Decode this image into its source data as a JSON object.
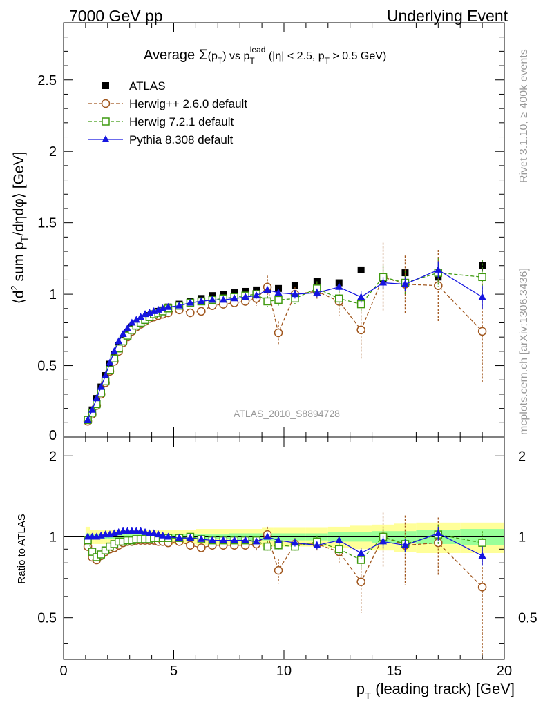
{
  "header": {
    "left": "7000 GeV pp",
    "right": "Underlying Event"
  },
  "side_text": {
    "rivet": "Rivet 3.1.10, ≥ 400k events",
    "mcplots": "mcplots.cern.ch [arXiv:1306.3436]"
  },
  "watermark": "ATLAS_2010_S8894728",
  "colors": {
    "atlas": "#000000",
    "herwigpp": "#a0561d",
    "herwig7": "#3f9a10",
    "pythia": "#1515e0",
    "band_yellow": "#ffff99",
    "band_green": "#99ff99"
  },
  "chart_data": [
    {
      "type": "scatter",
      "panel": "main",
      "title": "Average Σ(p_T) vs p_T^lead (|η| < 2.5, p_T > 0.5 GeV)",
      "ylabel": "⟨d² sum p_T/dηdφ⟩ [GeV]",
      "xlabel": "",
      "xlim": [
        0,
        20
      ],
      "ylim": [
        0,
        2.9
      ],
      "xticks": [
        0,
        5,
        10,
        15,
        20
      ],
      "yticks": [
        0.5,
        1,
        1.5,
        2,
        2.5
      ],
      "ytick_labels": [
        "0.5",
        "1",
        "1.5",
        "2",
        "2.5"
      ],
      "y0_label": "0",
      "legend_position": "top-left",
      "x": [
        1.1,
        1.3,
        1.5,
        1.7,
        1.9,
        2.1,
        2.3,
        2.5,
        2.7,
        2.9,
        3.1,
        3.3,
        3.5,
        3.7,
        3.9,
        4.1,
        4.3,
        4.5,
        4.75,
        5.25,
        5.75,
        6.25,
        6.75,
        7.25,
        7.75,
        8.25,
        8.75,
        9.25,
        9.75,
        10.5,
        11.5,
        12.5,
        13.5,
        14.5,
        15.5,
        17,
        19
      ],
      "series": [
        {
          "name": "ATLAS",
          "marker": "filled-square",
          "values": [
            0.12,
            0.19,
            0.27,
            0.35,
            0.43,
            0.51,
            0.58,
            0.64,
            0.69,
            0.73,
            0.77,
            0.79,
            0.81,
            0.83,
            0.85,
            0.86,
            0.88,
            0.89,
            0.91,
            0.93,
            0.95,
            0.97,
            0.99,
            1.0,
            1.01,
            1.02,
            1.03,
            1.03,
            1.04,
            1.06,
            1.09,
            1.08,
            1.17,
            1.11,
            1.15,
            1.12,
            1.2
          ],
          "errors": [
            0.01,
            0.01,
            0.01,
            0.01,
            0.01,
            0.01,
            0.01,
            0.01,
            0.01,
            0.01,
            0.01,
            0.01,
            0.01,
            0.01,
            0.01,
            0.01,
            0.01,
            0.01,
            0.01,
            0.01,
            0.01,
            0.01,
            0.01,
            0.01,
            0.01,
            0.01,
            0.02,
            0.02,
            0.02,
            0.02,
            0.02,
            0.02,
            0.02,
            0.02,
            0.03,
            0.03,
            0.04
          ]
        },
        {
          "name": "Herwig++ 2.6.0 default",
          "marker": "open-circle",
          "line": "dashed",
          "values": [
            0.11,
            0.16,
            0.22,
            0.3,
            0.38,
            0.46,
            0.53,
            0.6,
            0.66,
            0.7,
            0.74,
            0.77,
            0.79,
            0.81,
            0.83,
            0.84,
            0.85,
            0.86,
            0.87,
            0.89,
            0.87,
            0.88,
            0.92,
            0.93,
            0.94,
            0.95,
            0.97,
            1.05,
            0.73,
            1.0,
            1.02,
            0.95,
            0.75,
            1.12,
            1.07,
            1.06,
            0.74
          ],
          "errors": [
            0.005,
            0.005,
            0.005,
            0.005,
            0.005,
            0.005,
            0.005,
            0.005,
            0.005,
            0.005,
            0.005,
            0.005,
            0.005,
            0.005,
            0.005,
            0.005,
            0.005,
            0.005,
            0.005,
            0.01,
            0.01,
            0.01,
            0.02,
            0.02,
            0.03,
            0.03,
            0.05,
            0.08,
            0.08,
            0.05,
            0.06,
            0.1,
            0.2,
            0.24,
            0.2,
            0.25,
            0.36
          ]
        },
        {
          "name": "Herwig 7.2.1 default",
          "marker": "open-square",
          "line": "dashed",
          "values": [
            0.12,
            0.17,
            0.23,
            0.31,
            0.39,
            0.47,
            0.55,
            0.62,
            0.67,
            0.71,
            0.75,
            0.78,
            0.8,
            0.82,
            0.84,
            0.86,
            0.87,
            0.88,
            0.9,
            0.92,
            0.94,
            0.95,
            0.96,
            0.97,
            0.98,
            0.99,
            1.0,
            0.95,
            0.96,
            0.97,
            1.04,
            0.97,
            0.93,
            1.12,
            1.08,
            1.15,
            1.12
          ],
          "errors": [
            0.005,
            0.005,
            0.005,
            0.005,
            0.005,
            0.005,
            0.005,
            0.005,
            0.005,
            0.005,
            0.005,
            0.005,
            0.005,
            0.005,
            0.005,
            0.005,
            0.005,
            0.005,
            0.005,
            0.01,
            0.01,
            0.01,
            0.01,
            0.02,
            0.02,
            0.02,
            0.03,
            0.04,
            0.04,
            0.04,
            0.05,
            0.05,
            0.06,
            0.08,
            0.08,
            0.1,
            0.12
          ]
        },
        {
          "name": "Pythia 8.308 default",
          "marker": "filled-triangle",
          "line": "solid",
          "values": [
            0.12,
            0.19,
            0.27,
            0.35,
            0.43,
            0.52,
            0.6,
            0.67,
            0.72,
            0.76,
            0.8,
            0.82,
            0.84,
            0.86,
            0.87,
            0.88,
            0.89,
            0.9,
            0.91,
            0.92,
            0.94,
            0.95,
            0.96,
            0.96,
            0.97,
            0.98,
            0.99,
            1.03,
            1.01,
            1.0,
            1.01,
            1.05,
            0.98,
            1.08,
            1.07,
            1.17,
            0.98
          ],
          "errors": [
            0.005,
            0.005,
            0.005,
            0.005,
            0.005,
            0.005,
            0.005,
            0.005,
            0.005,
            0.005,
            0.005,
            0.005,
            0.005,
            0.005,
            0.005,
            0.005,
            0.005,
            0.005,
            0.005,
            0.01,
            0.01,
            0.01,
            0.01,
            0.01,
            0.01,
            0.02,
            0.02,
            0.02,
            0.02,
            0.03,
            0.03,
            0.03,
            0.04,
            0.04,
            0.05,
            0.06,
            0.08
          ]
        }
      ]
    },
    {
      "type": "scatter",
      "panel": "ratio",
      "ylabel": "Ratio to ATLAS",
      "xlabel": "p_T (leading track) [GeV]",
      "xlim": [
        0,
        20
      ],
      "ylim": [
        0.35,
        2.35
      ],
      "xticks": [
        0,
        5,
        10,
        15,
        20
      ],
      "yticks": [
        0.5,
        1,
        2
      ],
      "ytick_labels": [
        "0.5",
        "1",
        "2"
      ],
      "reference_line": 1,
      "x": [
        1.1,
        1.3,
        1.5,
        1.7,
        1.9,
        2.1,
        2.3,
        2.5,
        2.7,
        2.9,
        3.1,
        3.3,
        3.5,
        3.7,
        3.9,
        4.1,
        4.3,
        4.5,
        4.75,
        5.25,
        5.75,
        6.25,
        6.75,
        7.25,
        7.75,
        8.25,
        8.75,
        9.25,
        9.75,
        10.5,
        11.5,
        12.5,
        13.5,
        14.5,
        15.5,
        17,
        19
      ],
      "bands": {
        "edges": [
          1,
          1.2,
          1.4,
          1.6,
          1.8,
          2.0,
          2.2,
          2.4,
          2.6,
          2.8,
          3.0,
          3.2,
          3.4,
          3.6,
          3.8,
          4.0,
          4.2,
          4.4,
          4.6,
          5.0,
          5.5,
          6.0,
          6.5,
          7.0,
          7.5,
          8.0,
          8.5,
          9.0,
          9.5,
          10.0,
          11.0,
          12.0,
          13.0,
          14.0,
          15.0,
          16.0,
          18.0,
          20.0
        ],
        "yellow_halfwidth": [
          0.09,
          0.06,
          0.06,
          0.06,
          0.06,
          0.06,
          0.06,
          0.06,
          0.06,
          0.06,
          0.06,
          0.06,
          0.06,
          0.06,
          0.06,
          0.06,
          0.06,
          0.06,
          0.06,
          0.06,
          0.06,
          0.07,
          0.07,
          0.07,
          0.07,
          0.07,
          0.07,
          0.08,
          0.08,
          0.08,
          0.08,
          0.09,
          0.1,
          0.11,
          0.12,
          0.13,
          0.13
        ],
        "green_halfwidth": [
          0.03,
          0.02,
          0.02,
          0.02,
          0.02,
          0.02,
          0.02,
          0.02,
          0.02,
          0.02,
          0.02,
          0.02,
          0.02,
          0.02,
          0.02,
          0.02,
          0.02,
          0.02,
          0.02,
          0.02,
          0.02,
          0.02,
          0.02,
          0.02,
          0.03,
          0.03,
          0.03,
          0.03,
          0.03,
          0.03,
          0.03,
          0.04,
          0.04,
          0.05,
          0.05,
          0.06,
          0.07
        ]
      },
      "series": [
        {
          "name": "Herwig++ 2.6.0 default",
          "values": [
            0.92,
            0.84,
            0.82,
            0.85,
            0.88,
            0.9,
            0.91,
            0.93,
            0.95,
            0.96,
            0.96,
            0.97,
            0.97,
            0.97,
            0.97,
            0.97,
            0.96,
            0.96,
            0.95,
            0.96,
            0.93,
            0.91,
            0.93,
            0.93,
            0.93,
            0.93,
            0.94,
            1.02,
            0.75,
            0.94,
            0.94,
            0.88,
            0.68,
            1.0,
            0.93,
            0.95,
            0.65
          ],
          "errors": [
            0.005,
            0.005,
            0.005,
            0.005,
            0.005,
            0.005,
            0.005,
            0.005,
            0.005,
            0.005,
            0.005,
            0.005,
            0.005,
            0.005,
            0.005,
            0.005,
            0.005,
            0.005,
            0.005,
            0.01,
            0.01,
            0.01,
            0.02,
            0.02,
            0.03,
            0.03,
            0.05,
            0.07,
            0.08,
            0.05,
            0.05,
            0.09,
            0.16,
            0.23,
            0.27,
            0.23,
            0.3
          ]
        },
        {
          "name": "Herwig 7.2.1 default",
          "values": [
            0.97,
            0.88,
            0.84,
            0.86,
            0.89,
            0.92,
            0.94,
            0.96,
            0.96,
            0.97,
            0.97,
            0.98,
            0.98,
            0.98,
            0.98,
            0.99,
            0.99,
            0.99,
            0.99,
            0.99,
            1.0,
            0.98,
            0.97,
            0.97,
            0.97,
            0.97,
            0.97,
            0.92,
            0.93,
            0.92,
            0.96,
            0.9,
            0.82,
            1.0,
            0.94,
            1.02,
            0.95
          ],
          "errors": [
            0.005,
            0.005,
            0.005,
            0.005,
            0.005,
            0.005,
            0.005,
            0.005,
            0.005,
            0.005,
            0.005,
            0.005,
            0.005,
            0.005,
            0.005,
            0.005,
            0.005,
            0.005,
            0.005,
            0.01,
            0.01,
            0.01,
            0.01,
            0.02,
            0.02,
            0.02,
            0.03,
            0.04,
            0.04,
            0.04,
            0.05,
            0.05,
            0.06,
            0.07,
            0.07,
            0.09,
            0.1
          ]
        },
        {
          "name": "Pythia 8.308 default",
          "values": [
            1.0,
            1.0,
            1.0,
            1.01,
            1.02,
            1.02,
            1.03,
            1.04,
            1.05,
            1.05,
            1.05,
            1.05,
            1.05,
            1.04,
            1.03,
            1.03,
            1.02,
            1.01,
            1.0,
            0.99,
            0.99,
            0.98,
            0.97,
            0.97,
            0.97,
            0.97,
            0.96,
            1.0,
            0.97,
            0.95,
            0.93,
            0.97,
            0.87,
            0.96,
            0.93,
            1.03,
            0.85
          ],
          "errors": [
            0.005,
            0.005,
            0.005,
            0.005,
            0.005,
            0.005,
            0.005,
            0.005,
            0.005,
            0.005,
            0.005,
            0.005,
            0.005,
            0.005,
            0.005,
            0.005,
            0.005,
            0.005,
            0.005,
            0.01,
            0.01,
            0.01,
            0.01,
            0.01,
            0.01,
            0.02,
            0.02,
            0.02,
            0.02,
            0.03,
            0.03,
            0.03,
            0.04,
            0.05,
            0.05,
            0.06,
            0.07
          ]
        }
      ]
    }
  ]
}
